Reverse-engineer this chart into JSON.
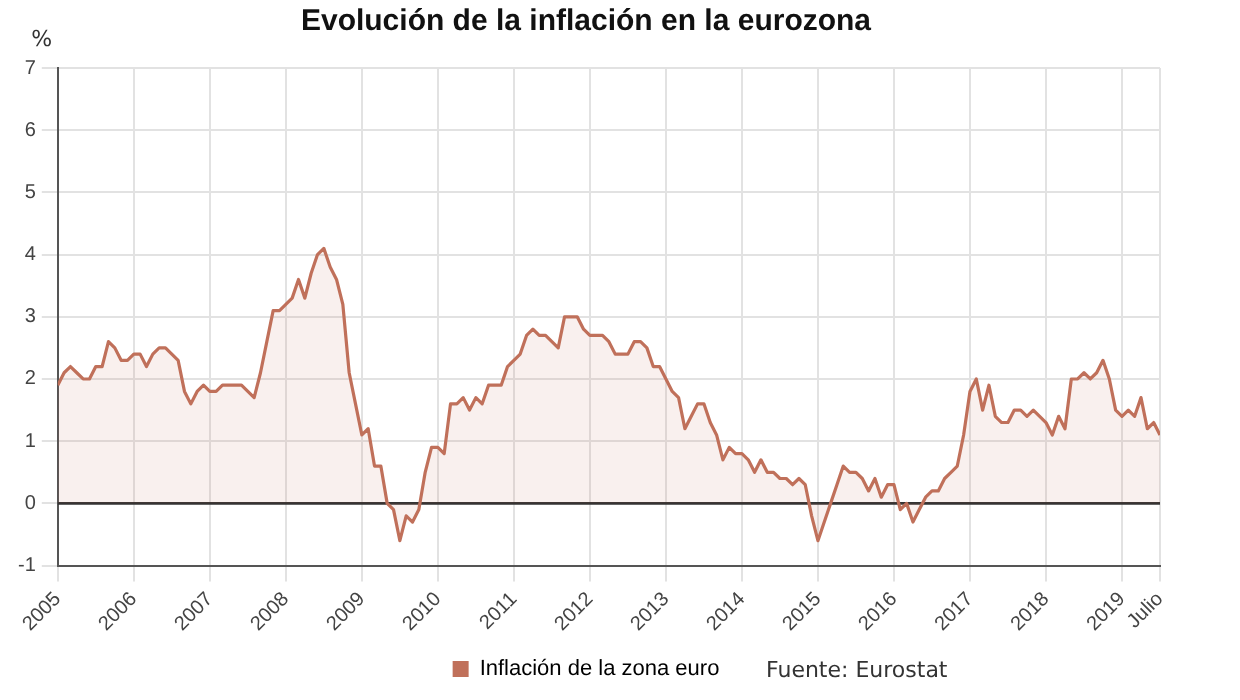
{
  "chart_data": {
    "type": "area",
    "title": "Evolución de la inflación en la eurozona",
    "ylabel": "%",
    "x": [
      "2005-01",
      "2005-02",
      "2005-03",
      "2005-04",
      "2005-05",
      "2005-06",
      "2005-07",
      "2005-08",
      "2005-09",
      "2005-10",
      "2005-11",
      "2005-12",
      "2006-01",
      "2006-02",
      "2006-03",
      "2006-04",
      "2006-05",
      "2006-06",
      "2006-07",
      "2006-08",
      "2006-09",
      "2006-10",
      "2006-11",
      "2006-12",
      "2007-01",
      "2007-02",
      "2007-03",
      "2007-04",
      "2007-05",
      "2007-06",
      "2007-07",
      "2007-08",
      "2007-09",
      "2007-10",
      "2007-11",
      "2007-12",
      "2008-01",
      "2008-02",
      "2008-03",
      "2008-04",
      "2008-05",
      "2008-06",
      "2008-07",
      "2008-08",
      "2008-09",
      "2008-10",
      "2008-11",
      "2008-12",
      "2009-01",
      "2009-02",
      "2009-03",
      "2009-04",
      "2009-05",
      "2009-06",
      "2009-07",
      "2009-08",
      "2009-09",
      "2009-10",
      "2009-11",
      "2009-12",
      "2010-01",
      "2010-02",
      "2010-03",
      "2010-04",
      "2010-05",
      "2010-06",
      "2010-07",
      "2010-08",
      "2010-09",
      "2010-10",
      "2010-11",
      "2010-12",
      "2011-01",
      "2011-02",
      "2011-03",
      "2011-04",
      "2011-05",
      "2011-06",
      "2011-07",
      "2011-08",
      "2011-09",
      "2011-10",
      "2011-11",
      "2011-12",
      "2012-01",
      "2012-02",
      "2012-03",
      "2012-04",
      "2012-05",
      "2012-06",
      "2012-07",
      "2012-08",
      "2012-09",
      "2012-10",
      "2012-11",
      "2012-12",
      "2013-01",
      "2013-02",
      "2013-03",
      "2013-04",
      "2013-05",
      "2013-06",
      "2013-07",
      "2013-08",
      "2013-09",
      "2013-10",
      "2013-11",
      "2013-12",
      "2014-01",
      "2014-02",
      "2014-03",
      "2014-04",
      "2014-05",
      "2014-06",
      "2014-07",
      "2014-08",
      "2014-09",
      "2014-10",
      "2014-11",
      "2014-12",
      "2015-01",
      "2015-02",
      "2015-03",
      "2015-04",
      "2015-05",
      "2015-06",
      "2015-07",
      "2015-08",
      "2015-09",
      "2015-10",
      "2015-11",
      "2015-12",
      "2016-01",
      "2016-02",
      "2016-03",
      "2016-04",
      "2016-05",
      "2016-06",
      "2016-07",
      "2016-08",
      "2016-09",
      "2016-10",
      "2016-11",
      "2016-12",
      "2017-01",
      "2017-02",
      "2017-03",
      "2017-04",
      "2017-05",
      "2017-06",
      "2017-07",
      "2017-08",
      "2017-09",
      "2017-10",
      "2017-11",
      "2017-12",
      "2018-01",
      "2018-02",
      "2018-03",
      "2018-04",
      "2018-05",
      "2018-06",
      "2018-07",
      "2018-08",
      "2018-09",
      "2018-10",
      "2018-11",
      "2018-12",
      "2019-01",
      "2019-02",
      "2019-03",
      "2019-04",
      "2019-05",
      "2019-06",
      "2019-07"
    ],
    "series": [
      {
        "name": "Inflación de la zona euro",
        "color": "#c0705a",
        "values": [
          1.9,
          2.1,
          2.2,
          2.1,
          2.0,
          2.0,
          2.2,
          2.2,
          2.6,
          2.5,
          2.3,
          2.3,
          2.4,
          2.4,
          2.2,
          2.4,
          2.5,
          2.5,
          2.4,
          2.3,
          1.8,
          1.6,
          1.8,
          1.9,
          1.8,
          1.8,
          1.9,
          1.9,
          1.9,
          1.9,
          1.8,
          1.7,
          2.1,
          2.6,
          3.1,
          3.1,
          3.2,
          3.3,
          3.6,
          3.3,
          3.7,
          4.0,
          4.1,
          3.8,
          3.6,
          3.2,
          2.1,
          1.6,
          1.1,
          1.2,
          0.6,
          0.6,
          0.0,
          -0.1,
          -0.6,
          -0.2,
          -0.3,
          -0.1,
          0.5,
          0.9,
          0.9,
          0.8,
          1.6,
          1.6,
          1.7,
          1.5,
          1.7,
          1.6,
          1.9,
          1.9,
          1.9,
          2.2,
          2.3,
          2.4,
          2.7,
          2.8,
          2.7,
          2.7,
          2.6,
          2.5,
          3.0,
          3.0,
          3.0,
          2.8,
          2.7,
          2.7,
          2.7,
          2.6,
          2.4,
          2.4,
          2.4,
          2.6,
          2.6,
          2.5,
          2.2,
          2.2,
          2.0,
          1.8,
          1.7,
          1.2,
          1.4,
          1.6,
          1.6,
          1.3,
          1.1,
          0.7,
          0.9,
          0.8,
          0.8,
          0.7,
          0.5,
          0.7,
          0.5,
          0.5,
          0.4,
          0.4,
          0.3,
          0.4,
          0.3,
          -0.2,
          -0.6,
          -0.3,
          0.0,
          0.3,
          0.6,
          0.5,
          0.5,
          0.4,
          0.2,
          0.4,
          0.1,
          0.3,
          0.3,
          -0.1,
          0.0,
          -0.3,
          -0.1,
          0.1,
          0.2,
          0.2,
          0.4,
          0.5,
          0.6,
          1.1,
          1.8,
          2.0,
          1.5,
          1.9,
          1.4,
          1.3,
          1.3,
          1.5,
          1.5,
          1.4,
          1.5,
          1.4,
          1.3,
          1.1,
          1.4,
          1.2,
          2.0,
          2.0,
          2.1,
          2.0,
          2.1,
          2.3,
          2.0,
          1.5,
          1.4,
          1.5,
          1.4,
          1.7,
          1.2,
          1.3,
          1.1
        ]
      }
    ],
    "xlim": [
      "2005-01",
      "2019-07"
    ],
    "xticks": [
      "2005",
      "2006",
      "2007",
      "2008",
      "2009",
      "2010",
      "2011",
      "2012",
      "2013",
      "2014",
      "2015",
      "2016",
      "2017",
      "2018",
      "2019",
      {
        "value": "2019-07",
        "label": "Julio"
      }
    ],
    "ylim": [
      -1,
      7
    ],
    "yticks": [
      -1,
      0,
      1,
      2,
      3,
      4,
      5,
      6,
      7
    ],
    "ref_lines": [
      {
        "axis": "y",
        "value": 0,
        "color": "#333333"
      }
    ],
    "grid": true,
    "legend": "bottom",
    "marker": "none",
    "line_style": "solid",
    "annotations": [
      "Fuente: Eurostat"
    ]
  }
}
